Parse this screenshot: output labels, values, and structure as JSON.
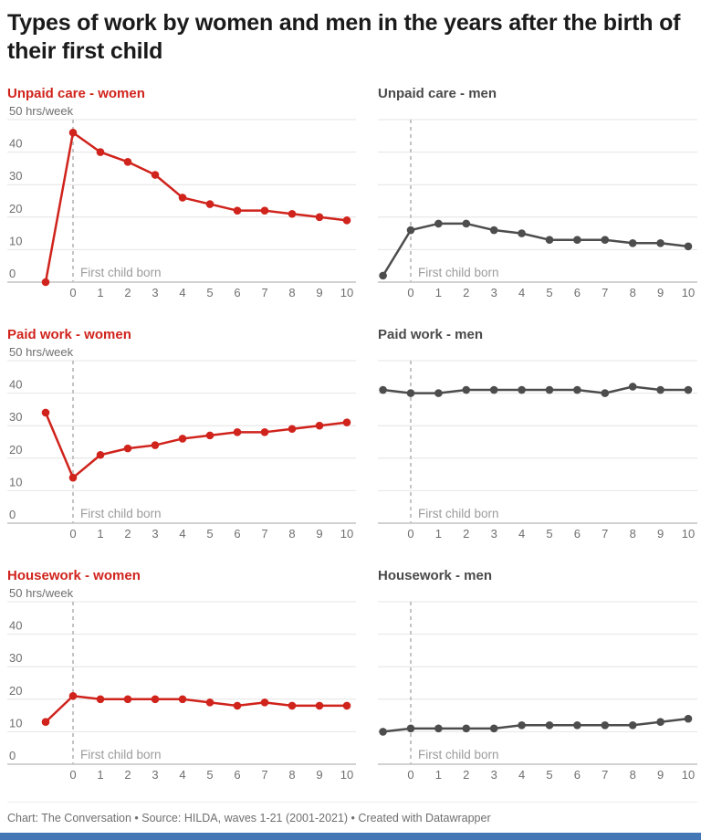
{
  "title": "Types of work by women and men in the years after the birth of their first child",
  "footer": "Chart: The Conversation • Source: HILDA, waves 1-21 (2001-2021) • Created with Datawrapper",
  "colors": {
    "women": "#d0231c",
    "men": "#4d4d4d",
    "grid": "#e4e4e4",
    "baseline": "#a3a3a3",
    "dashed": "#c4c4c4",
    "axis_text": "#6f6f6f",
    "annotation": "#9b9b9b",
    "title_text": "#1a1a1a",
    "bottom_bar": "#4377b6"
  },
  "chart_data": {
    "type": "line",
    "unit": "hrs/week",
    "x": [
      -1,
      0,
      1,
      2,
      3,
      4,
      5,
      6,
      7,
      8,
      9,
      10
    ],
    "xticks": [
      0,
      1,
      2,
      3,
      4,
      5,
      6,
      7,
      8,
      9,
      10
    ],
    "yticks": [
      0,
      10,
      20,
      30,
      40,
      50
    ],
    "ylim": [
      0,
      50
    ],
    "y_top_label": "50 hrs/week",
    "annotation": "First child born",
    "panels": [
      {
        "id": "unpaid-care-women",
        "title": "Unpaid care - women",
        "series": "women",
        "show_y_labels": true,
        "values": [
          0,
          46,
          40,
          37,
          33,
          26,
          24,
          22,
          22,
          21,
          20,
          19
        ]
      },
      {
        "id": "unpaid-care-men",
        "title": "Unpaid care - men",
        "series": "men",
        "show_y_labels": false,
        "values": [
          2,
          16,
          18,
          18,
          16,
          15,
          13,
          13,
          13,
          12,
          12,
          11
        ]
      },
      {
        "id": "paid-work-women",
        "title": "Paid work - women",
        "series": "women",
        "show_y_labels": true,
        "values": [
          34,
          14,
          21,
          23,
          24,
          26,
          27,
          28,
          28,
          29,
          30,
          31
        ]
      },
      {
        "id": "paid-work-men",
        "title": "Paid work - men",
        "series": "men",
        "show_y_labels": false,
        "values": [
          41,
          40,
          40,
          41,
          41,
          41,
          41,
          41,
          40,
          42,
          41,
          41
        ]
      },
      {
        "id": "housework-women",
        "title": "Housework - women",
        "series": "women",
        "show_y_labels": true,
        "values": [
          13,
          21,
          20,
          20,
          20,
          20,
          19,
          18,
          19,
          18,
          18,
          18
        ]
      },
      {
        "id": "housework-men",
        "title": "Housework - men",
        "series": "men",
        "show_y_labels": false,
        "values": [
          10,
          11,
          11,
          11,
          11,
          12,
          12,
          12,
          12,
          12,
          13,
          14
        ]
      }
    ]
  }
}
